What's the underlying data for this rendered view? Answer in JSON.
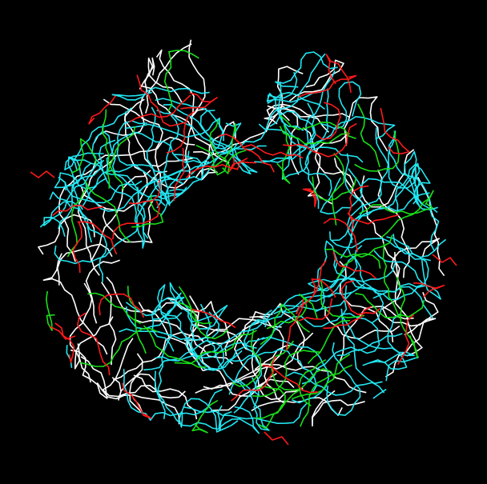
{
  "scene": {
    "background_color": "#000000",
    "representation": "wireframe-trace",
    "palette": {
      "helix": "#22e6f2",
      "strand": "#ff1a1a",
      "turn": "#18e018",
      "coil": "#ffffff"
    }
  }
}
